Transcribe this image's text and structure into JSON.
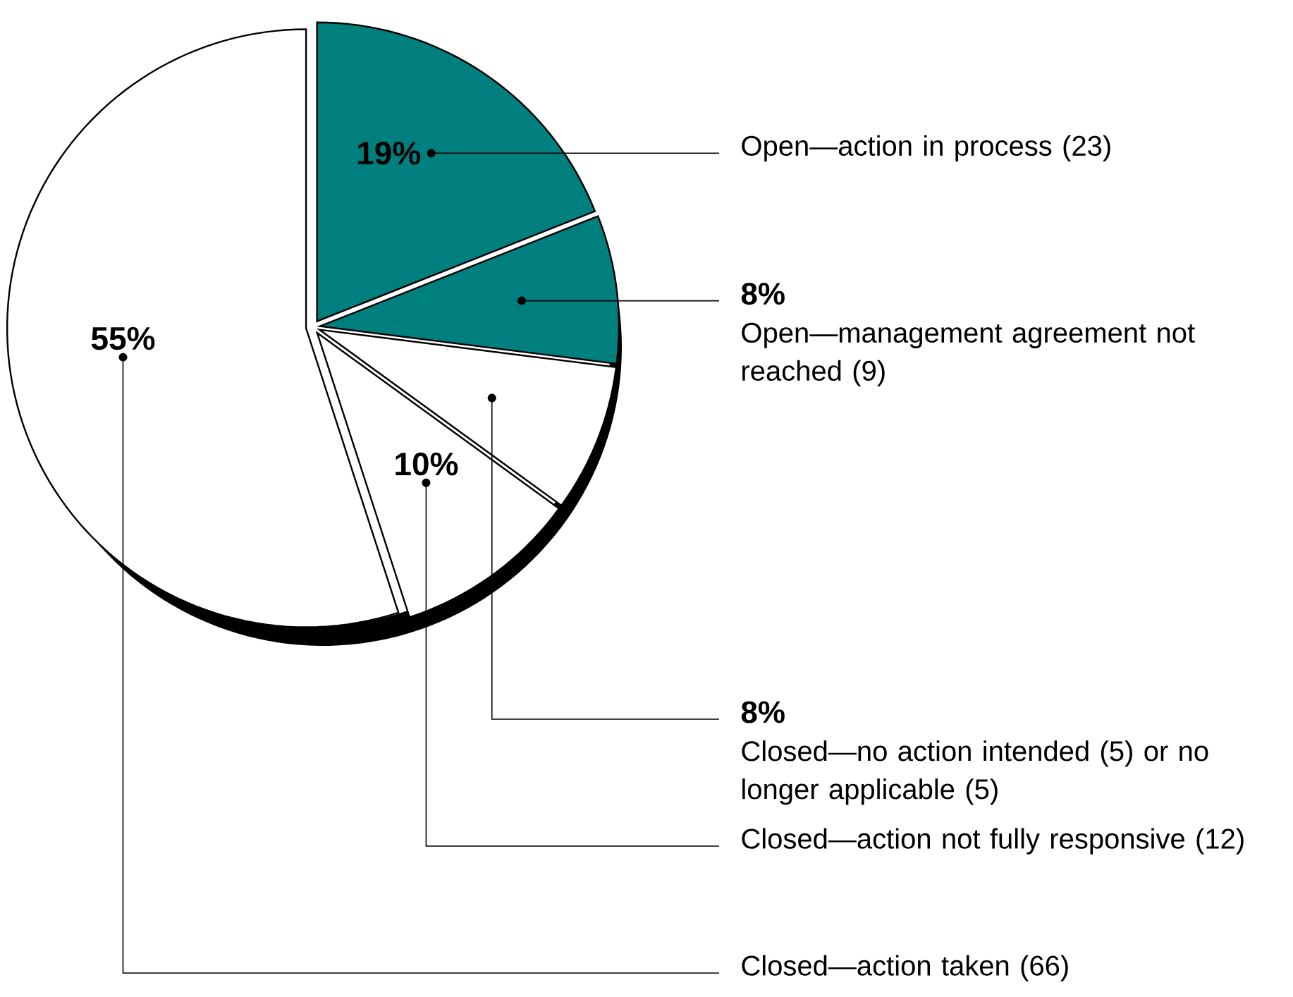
{
  "chart_data": {
    "type": "pie",
    "categories": [
      "Open—action in process (23)",
      "Open—management agreement not reached (9)",
      "Closed—no action intended (5) or no longer applicable (5)",
      "Closed—action not fully responsive (12)",
      "Closed—action taken (66)"
    ],
    "values": [
      19,
      8,
      8,
      10,
      55
    ],
    "colors": [
      "#007f7f",
      "#007f7f",
      "#ffffff",
      "#ffffff",
      "#ffffff"
    ],
    "value_labels": [
      "19%",
      "8%",
      "8%",
      "10%",
      "55%"
    ]
  }
}
